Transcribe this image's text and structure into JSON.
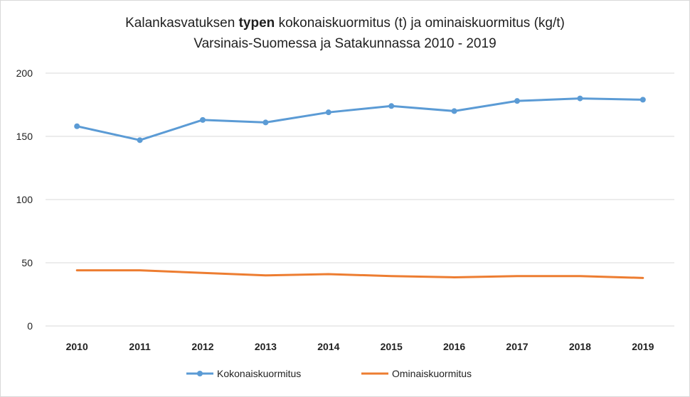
{
  "chart_data": {
    "type": "line",
    "title": {
      "pre": "Kalankasvatuksen ",
      "bold": "typen",
      "post": " kokonaiskuormitus (t) ja ominaiskuormitus (kg/t)",
      "line2": "Varsinais-Suomessa ja Satakunnassa 2010 - 2019"
    },
    "categories": [
      "2010",
      "2011",
      "2012",
      "2013",
      "2014",
      "2015",
      "2016",
      "2017",
      "2018",
      "2019"
    ],
    "series": [
      {
        "name": "Kokonaiskuormitus",
        "color": "#5b9bd5",
        "markers": true,
        "values": [
          158,
          147,
          163,
          161,
          169,
          174,
          170,
          178,
          180,
          179
        ]
      },
      {
        "name": "Ominaiskuormitus",
        "color": "#ed7d31",
        "markers": false,
        "values": [
          44,
          44,
          42,
          40,
          41,
          39.5,
          38.5,
          39.5,
          39.5,
          38
        ]
      }
    ],
    "ylim": [
      0,
      200
    ],
    "yticks": [
      0,
      50,
      100,
      150,
      200
    ],
    "grid": true,
    "legend_position": "bottom"
  }
}
